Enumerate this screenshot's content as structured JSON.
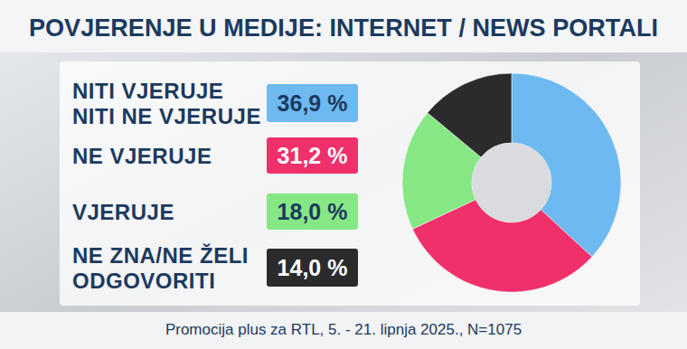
{
  "chart_data": {
    "type": "donut",
    "title": "POVJERENJE U MEDIJE: INTERNET / NEWS PORTALI",
    "categories": [
      "NITI VJERUJE\nNITI NE VJERUJE",
      "NE VJERUJE",
      "VJERUJE",
      "NE ZNA/NE ŽELI\nODGOVORITI"
    ],
    "values": [
      36.9,
      31.2,
      18.0,
      14.0
    ],
    "value_labels": [
      "36,9 %",
      "31,2 %",
      "18,0 %",
      "14,0 %"
    ],
    "colors": [
      "#6db9f0",
      "#f0306b",
      "#86e884",
      "#2b2b2d"
    ],
    "data_labels": true,
    "source": "Promocija plus za RTL, 5. - 21. lipnja 2025., N=1075"
  }
}
